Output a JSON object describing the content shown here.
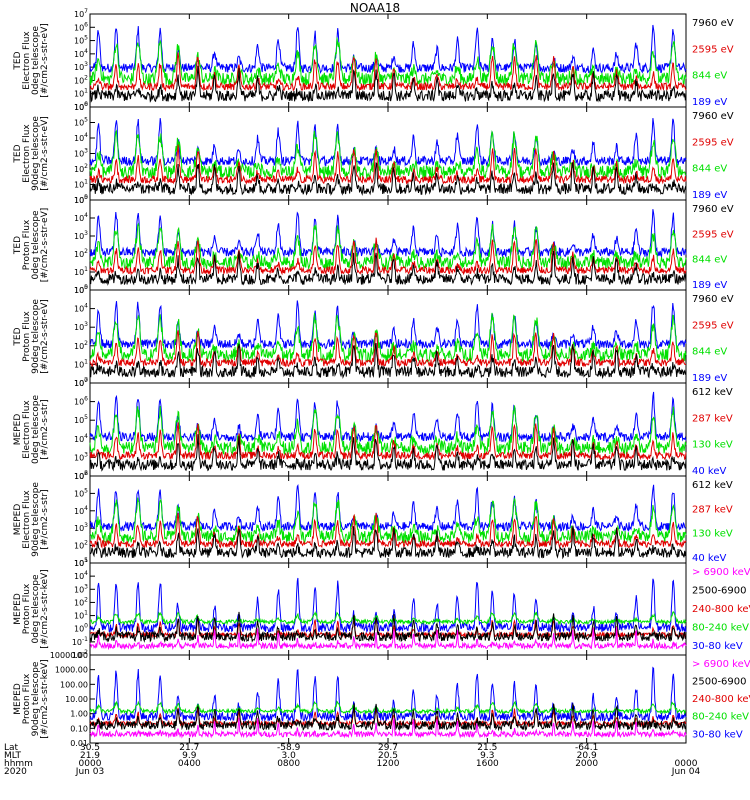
{
  "title": "NOAA18",
  "colors": {
    "black": "#000000",
    "red": "#e00000",
    "green": "#00e000",
    "blue": "#0000ff",
    "magenta": "#ff00ff"
  },
  "chart_data": {
    "type": "line",
    "x_range_hours": [
      0,
      24
    ],
    "panels": [
      {
        "ylabel": [
          "TED",
          "Electron Flux",
          "0deg telescope",
          "[#/cm2-s-str-eV]"
        ],
        "yscale": "log",
        "ylim": [
          1,
          10000000.0
        ],
        "yticks": [
          "10^0",
          "10^1",
          "10^2",
          "10^3",
          "10^4",
          "10^5",
          "10^6",
          "10^7"
        ],
        "legend": [
          {
            "label": "7960 eV",
            "color": "black"
          },
          {
            "label": "2595 eV",
            "color": "red"
          },
          {
            "label": "844 eV",
            "color": "green"
          },
          {
            "label": "189 eV",
            "color": "blue"
          }
        ]
      },
      {
        "ylabel": [
          "TED",
          "Electron Flux",
          "90deg telescope",
          "[#/cm2-s-str-eV]"
        ],
        "yscale": "log",
        "ylim": [
          1,
          1000000.0
        ],
        "yticks": [
          "10^0",
          "10^1",
          "10^2",
          "10^3",
          "10^4",
          "10^5",
          "10^6"
        ],
        "legend": [
          {
            "label": "7960 eV",
            "color": "black"
          },
          {
            "label": "2595 eV",
            "color": "red"
          },
          {
            "label": "844 eV",
            "color": "green"
          },
          {
            "label": "189 eV",
            "color": "blue"
          }
        ]
      },
      {
        "ylabel": [
          "TED",
          "Proton Flux",
          "0deg telescope",
          "[#/cm2-s-str-eV]"
        ],
        "yscale": "log",
        "ylim": [
          1,
          100000.0
        ],
        "yticks": [
          "10^0",
          "10^1",
          "10^2",
          "10^3",
          "10^4",
          "10^5"
        ],
        "legend": [
          {
            "label": "7960 eV",
            "color": "black"
          },
          {
            "label": "2595 eV",
            "color": "red"
          },
          {
            "label": "844 eV",
            "color": "green"
          },
          {
            "label": "189 eV",
            "color": "blue"
          }
        ]
      },
      {
        "ylabel": [
          "TED",
          "Proton Flux",
          "90deg telescope",
          "[#/cm2-s-str-eV]"
        ],
        "yscale": "log",
        "ylim": [
          1,
          100000.0
        ],
        "yticks": [
          "10^0",
          "10^1",
          "10^2",
          "10^3",
          "10^4",
          "10^5"
        ],
        "legend": [
          {
            "label": "7960 eV",
            "color": "black"
          },
          {
            "label": "2595 eV",
            "color": "red"
          },
          {
            "label": "844 eV",
            "color": "green"
          },
          {
            "label": "189 eV",
            "color": "blue"
          }
        ]
      },
      {
        "ylabel": [
          "MEPED",
          "Electron Flux",
          "0deg telescope",
          "[#/cm2-s-str]"
        ],
        "yscale": "log",
        "ylim": [
          100,
          10000000.0
        ],
        "yticks": [
          "10^2",
          "10^3",
          "10^4",
          "10^5",
          "10^6",
          "10^7"
        ],
        "legend": [
          {
            "label": "612 keV",
            "color": "black"
          },
          {
            "label": "287 keV",
            "color": "red"
          },
          {
            "label": "130 keV",
            "color": "green"
          },
          {
            "label": "40 keV",
            "color": "blue"
          }
        ]
      },
      {
        "ylabel": [
          "MEPED",
          "Electron Flux",
          "90deg telescope",
          "[#/cm2-s-str]"
        ],
        "yscale": "log",
        "ylim": [
          10,
          1000000.0
        ],
        "yticks": [
          "10^1",
          "10^2",
          "10^3",
          "10^4",
          "10^5",
          "10^6"
        ],
        "legend": [
          {
            "label": "612 keV",
            "color": "black"
          },
          {
            "label": "287 keV",
            "color": "red"
          },
          {
            "label": "130 keV",
            "color": "green"
          },
          {
            "label": "40 keV",
            "color": "blue"
          }
        ]
      },
      {
        "ylabel": [
          "MEPED",
          "Proton Flux",
          "0deg telescope",
          "[#/cm2-s-str-keV]"
        ],
        "yscale": "log",
        "ylim": [
          0.01,
          100000.0
        ],
        "yticks": [
          "10^-2",
          "10^-1",
          "10^0",
          "10^1",
          "10^2",
          "10^3",
          "10^4",
          "10^5"
        ],
        "legend": [
          {
            "label": "> 6900 keV",
            "color": "magenta"
          },
          {
            "label": "2500-6900",
            "color": "black"
          },
          {
            "label": "240-800 keV",
            "color": "red"
          },
          {
            "label": "80-240 keV",
            "color": "green"
          },
          {
            "label": "30-80 keV",
            "color": "blue"
          }
        ]
      },
      {
        "ylabel": [
          "MEPED",
          "Proton Flux",
          "90deg telescope",
          "[#/cm2-s-str-keV]"
        ],
        "yscale": "log",
        "ylim": [
          0.01,
          10000
        ],
        "yticks": [
          "10000.00",
          "1000.00",
          "100.00",
          "10.00",
          "1.00",
          "0.10",
          "0.01"
        ],
        "legend": [
          {
            "label": "> 6900 keV",
            "color": "magenta"
          },
          {
            "label": "2500-6900",
            "color": "black"
          },
          {
            "label": "240-800 keV",
            "color": "red"
          },
          {
            "label": "80-240 keV",
            "color": "green"
          },
          {
            "label": "30-80 keV",
            "color": "blue"
          }
        ]
      }
    ],
    "x_axis": {
      "row_labels": [
        "Lat",
        "MLT",
        "hhmm",
        "2020"
      ],
      "ticks": [
        {
          "hour": 0,
          "lat": "30.5",
          "mlt": "21.9",
          "hhmm": "0000",
          "date": "Jun 03"
        },
        {
          "hour": 4,
          "lat": "21.7",
          "mlt": "9.9",
          "hhmm": "0400",
          "date": ""
        },
        {
          "hour": 8,
          "lat": "-58.9",
          "mlt": "3.0",
          "hhmm": "0800",
          "date": ""
        },
        {
          "hour": 12,
          "lat": "29.7",
          "mlt": "20.5",
          "hhmm": "1200",
          "date": ""
        },
        {
          "hour": 16,
          "lat": "21.5",
          "mlt": "9.3",
          "hhmm": "1600",
          "date": ""
        },
        {
          "hour": 20,
          "lat": "-64.1",
          "mlt": "20.9",
          "hhmm": "2000",
          "date": ""
        },
        {
          "hour": 24,
          "lat": "",
          "mlt": "",
          "hhmm": "0000",
          "date": "Jun 04"
        }
      ]
    }
  }
}
